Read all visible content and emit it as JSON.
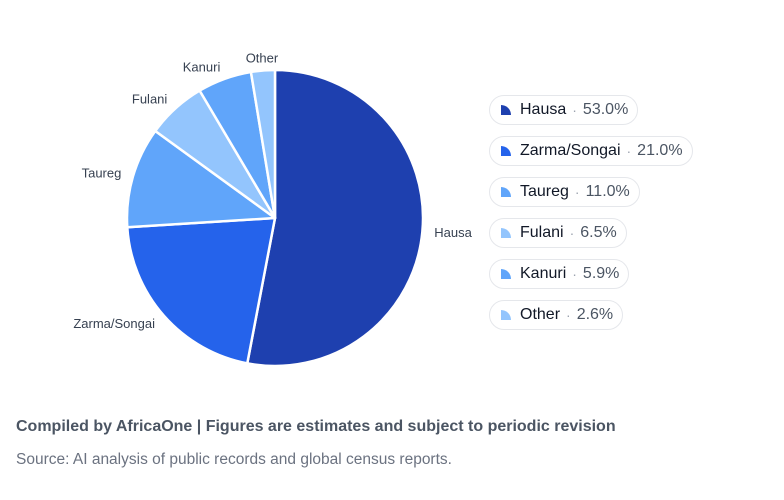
{
  "chart_data": {
    "type": "pie",
    "slices": [
      {
        "label": "Hausa",
        "value": 53.0,
        "value_label": "53.0%",
        "color": "#1e40af"
      },
      {
        "label": "Zarma/Songai",
        "value": 21.0,
        "value_label": "21.0%",
        "color": "#2563eb"
      },
      {
        "label": "Taureg",
        "value": 11.0,
        "value_label": "11.0%",
        "color": "#60a5fa"
      },
      {
        "label": "Fulani",
        "value": 6.5,
        "value_label": "6.5%",
        "color": "#93c5fd"
      },
      {
        "label": "Kanuri",
        "value": 5.9,
        "value_label": "5.9%",
        "color": "#60a5fa"
      },
      {
        "label": "Other",
        "value": 2.6,
        "value_label": "2.6%",
        "color": "#93c5fd"
      }
    ],
    "legend_position": "right"
  },
  "footer": {
    "compiled": "Compiled by AfricaOne | Figures are estimates and subject to periodic revision",
    "source": "Source: AI analysis of public records and global census reports."
  }
}
